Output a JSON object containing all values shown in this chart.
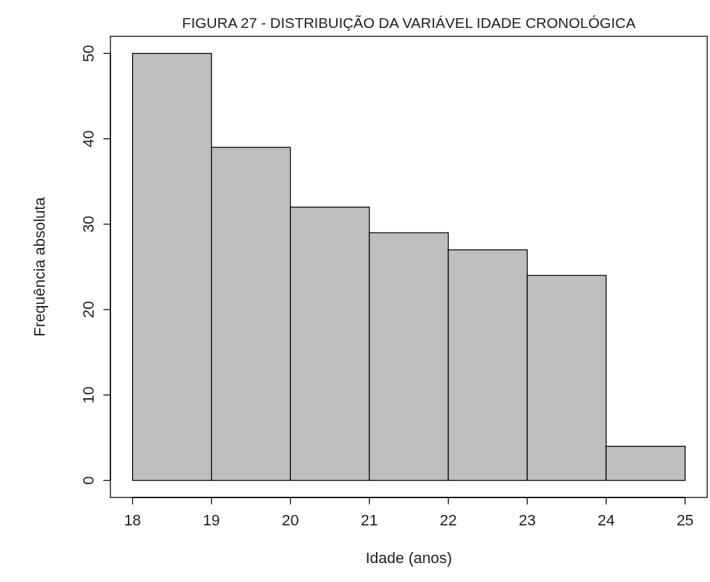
{
  "chart_data": {
    "type": "histogram",
    "title": "FIGURA 27 - DISTRIBUIÇÃO DA VARIÁVEL IDADE CRONOLÓGICA",
    "xlabel": "Idade (anos)",
    "ylabel": "Frequência absoluta",
    "bins": [
      18,
      19,
      20,
      21,
      22,
      23,
      24,
      25
    ],
    "values": [
      50,
      39,
      32,
      29,
      27,
      24,
      4
    ],
    "color": "#bebebe",
    "xlim": [
      17.72,
      25.28
    ],
    "ylim": [
      -2,
      52
    ],
    "xticks": [
      18,
      19,
      20,
      21,
      22,
      23,
      24,
      25
    ],
    "yticks": [
      0,
      10,
      20,
      30,
      40,
      50
    ],
    "grid": false
  }
}
